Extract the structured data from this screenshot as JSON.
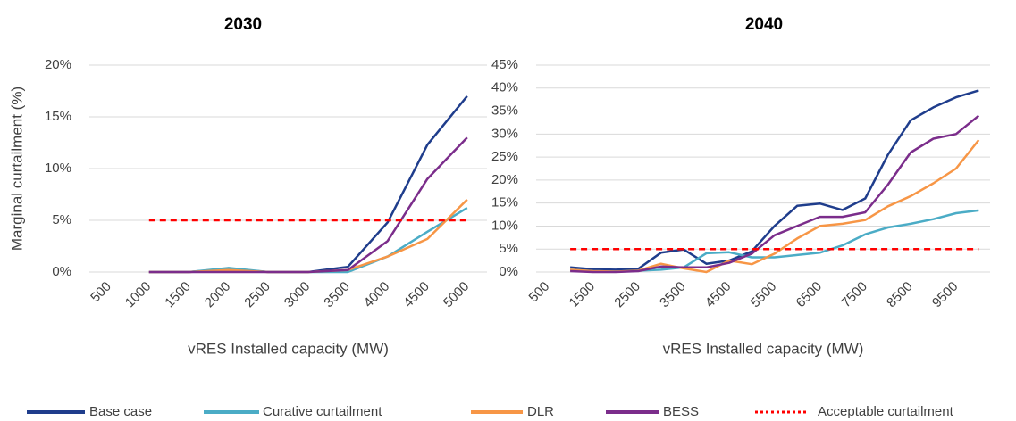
{
  "chart_data": [
    {
      "type": "line",
      "title": "2030",
      "x_label": "vRES Installed capacity (MW)",
      "y_label": "Marginal curtailment (%)",
      "categories": [
        500,
        1000,
        1500,
        2000,
        2500,
        3000,
        3500,
        4000,
        4500,
        5000
      ],
      "ylim": [
        0,
        20
      ],
      "yticks": [
        {
          "value": 0,
          "label": "0%"
        },
        {
          "value": 5,
          "label": "5%"
        },
        {
          "value": 10,
          "label": "10%"
        },
        {
          "value": 15,
          "label": "15%"
        },
        {
          "value": 20,
          "label": "20%"
        }
      ],
      "grid": true,
      "series": [
        {
          "name": "Base case",
          "color": "#1f3d8c",
          "values": [
            null,
            0,
            0,
            0.3,
            0,
            0,
            0.5,
            4.8,
            12.3,
            17
          ]
        },
        {
          "name": "Curative curtailment",
          "color": "#4bacc6",
          "values": [
            null,
            0,
            0,
            0.4,
            0,
            0,
            0,
            1.5,
            3.9,
            6.2
          ]
        },
        {
          "name": "DLR",
          "color": "#f79646",
          "values": [
            null,
            0,
            0,
            0.2,
            0,
            0,
            0.2,
            1.5,
            3.2,
            7
          ]
        },
        {
          "name": "BESS",
          "color": "#7b2d8b",
          "values": [
            null,
            0,
            0,
            0,
            0,
            0,
            0.2,
            3,
            9,
            13
          ]
        },
        {
          "name": "Acceptable curtailment",
          "color": "#ff0000",
          "dashed": true,
          "values": [
            null,
            5,
            5,
            5,
            5,
            5,
            5,
            5,
            5,
            5
          ]
        }
      ]
    },
    {
      "type": "line",
      "title": "2040",
      "x_label": "vRES Installed capacity (MW)",
      "categories": [
        500,
        null,
        1500,
        null,
        2500,
        null,
        3500,
        null,
        4500,
        null,
        5500,
        null,
        6500,
        null,
        7500,
        null,
        8500,
        null,
        9500,
        null
      ],
      "ylim": [
        0,
        45
      ],
      "yticks": [
        {
          "value": 0,
          "label": "0%"
        },
        {
          "value": 5,
          "label": "5%"
        },
        {
          "value": 10,
          "label": "10%"
        },
        {
          "value": 15,
          "label": "15%"
        },
        {
          "value": 20,
          "label": "20%"
        },
        {
          "value": 25,
          "label": "25%"
        },
        {
          "value": 30,
          "label": "30%"
        },
        {
          "value": 35,
          "label": "35%"
        },
        {
          "value": 40,
          "label": "40%"
        },
        {
          "value": 45,
          "label": "45%"
        }
      ],
      "grid": true,
      "series": [
        {
          "color": "#1f3d8c",
          "values": [
            null,
            1,
            0.6,
            0.5,
            0.7,
            4.2,
            4.9,
            1.8,
            2.5,
            4.5,
            10,
            14.4,
            14.9,
            13.5,
            16,
            25.5,
            33,
            35.8,
            38,
            39.5
          ]
        },
        {
          "color": "#4bacc6",
          "values": [
            null,
            0.5,
            0.2,
            0.1,
            0.3,
            0.5,
            1,
            4.1,
            4.3,
            3.2,
            3.2,
            3.7,
            4.2,
            5.8,
            8.2,
            9.7,
            10.5,
            11.5,
            12.8,
            13.4
          ]
        },
        {
          "color": "#f79646",
          "values": [
            null,
            0.5,
            0.2,
            0.1,
            0.3,
            1.8,
            0.8,
            0,
            2.5,
            1.7,
            4,
            7.3,
            10,
            10.5,
            11.3,
            14.3,
            16.5,
            19.3,
            22.5,
            28.7
          ]
        },
        {
          "color": "#7b2d8b",
          "values": [
            null,
            0.2,
            0,
            0,
            0.2,
            1.2,
            1,
            1,
            2,
            4,
            8,
            10,
            12,
            12,
            13,
            19,
            26,
            29,
            30,
            34
          ]
        },
        {
          "color": "#ff0000",
          "dashed": true,
          "values": [
            null,
            5,
            5,
            5,
            5,
            5,
            5,
            5,
            5,
            5,
            5,
            5,
            5,
            5,
            5,
            5,
            5,
            5,
            5,
            5
          ]
        }
      ]
    }
  ]
}
